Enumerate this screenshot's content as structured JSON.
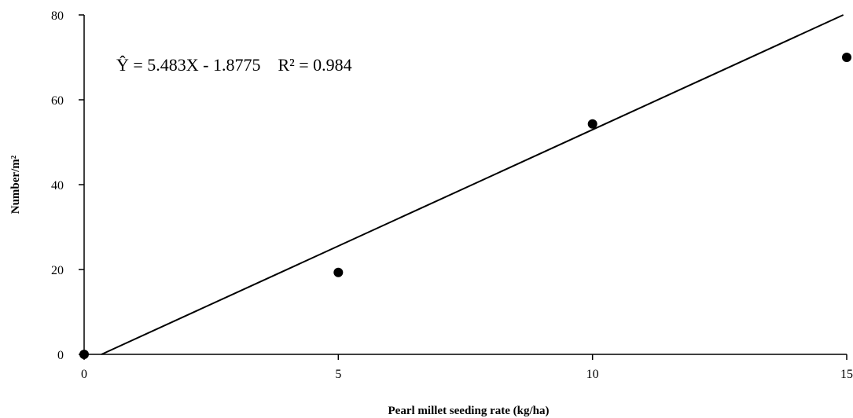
{
  "chart_data": {
    "type": "scatter",
    "xlabel": "Pearl millet seeding rate (kg/ha)",
    "ylabel": "Number/m²",
    "xlim": [
      0,
      15
    ],
    "ylim": [
      0,
      80
    ],
    "x_ticks": [
      "0",
      "5",
      "10",
      "15"
    ],
    "y_ticks": [
      "0",
      "20",
      "40",
      "60",
      "80"
    ],
    "grid": false,
    "points": [
      {
        "x": 0,
        "y": 0
      },
      {
        "x": 5,
        "y": 19.3
      },
      {
        "x": 10,
        "y": 54.3
      },
      {
        "x": 15,
        "y": 70
      }
    ],
    "trendline": {
      "slope": 5.483,
      "intercept": -1.8775,
      "x_from": 0,
      "x_to": 15
    },
    "equation_text": "Ŷ = 5.483X - 1.8775    R² = 0.984"
  }
}
